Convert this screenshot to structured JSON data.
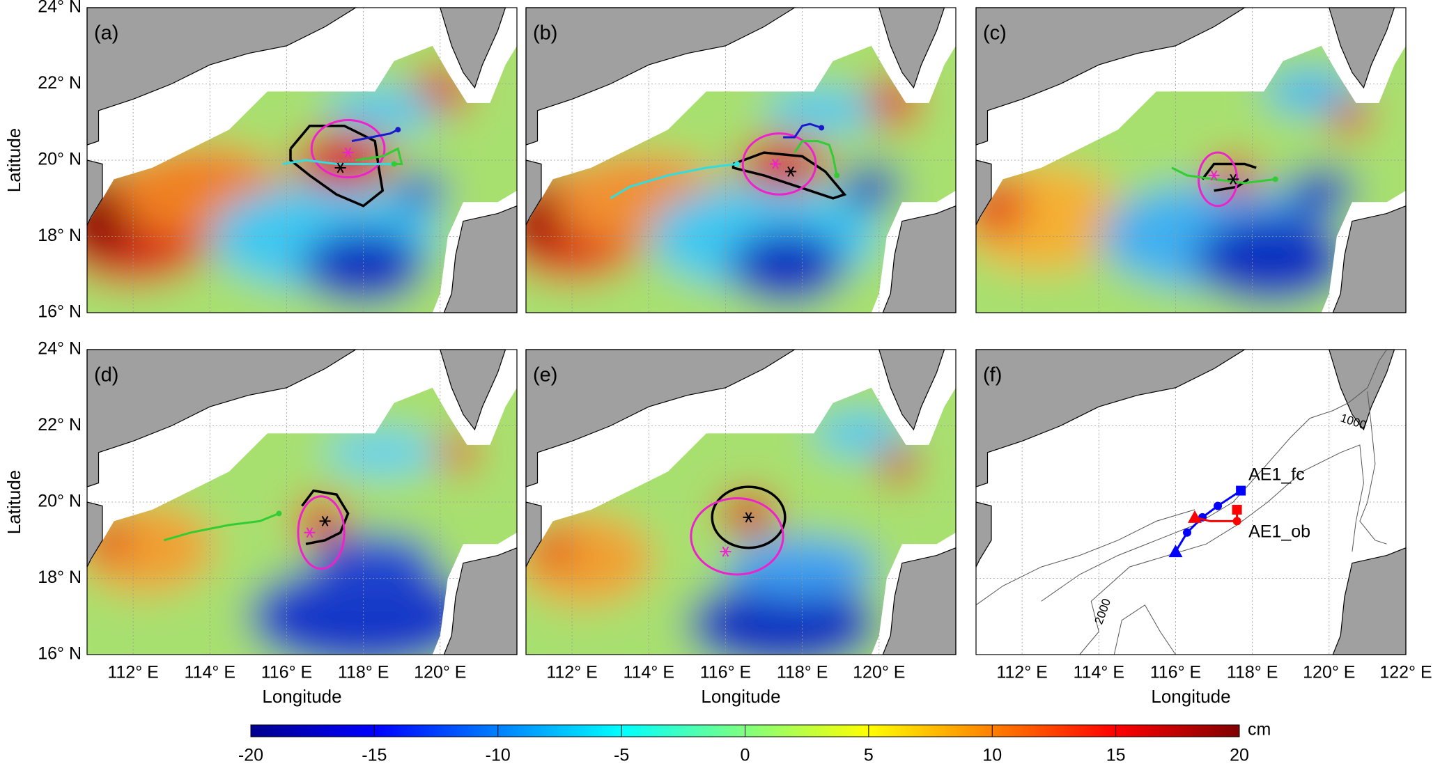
{
  "figure": {
    "panels": [
      {
        "label": "(a)"
      },
      {
        "label": "(b)"
      },
      {
        "label": "(c)"
      },
      {
        "label": "(d)"
      },
      {
        "label": "(e)"
      },
      {
        "label": "(f)",
        "contour_labels": [
          "1000",
          "2000"
        ],
        "legend": [
          {
            "name": "AE1_fc",
            "color": "#0000ff"
          },
          {
            "name": "AE1_ob",
            "color": "#ff0000"
          }
        ]
      }
    ],
    "xlabel": "Longitude",
    "ylabel": "Latitude",
    "xlim": [
      110.8,
      122
    ],
    "ylim": [
      16,
      24
    ],
    "xticks": [
      {
        "value": 112,
        "label": "112° E"
      },
      {
        "value": 114,
        "label": "114° E"
      },
      {
        "value": 116,
        "label": "116° E"
      },
      {
        "value": 118,
        "label": "118° E"
      },
      {
        "value": 120,
        "label": "120° E"
      },
      {
        "value": 122,
        "label": "122° E"
      }
    ],
    "yticks": [
      {
        "value": 16,
        "label": "16° N"
      },
      {
        "value": 18,
        "label": "18° N"
      },
      {
        "value": 20,
        "label": "20° N"
      },
      {
        "value": 22,
        "label": "22° N"
      },
      {
        "value": 24,
        "label": "24° N"
      }
    ],
    "grid": true,
    "colorbar": {
      "label": "cm",
      "lim": [
        -20,
        20
      ],
      "ticks": [
        -20,
        -15,
        -10,
        -5,
        0,
        5,
        10,
        15,
        20
      ]
    }
  }
}
